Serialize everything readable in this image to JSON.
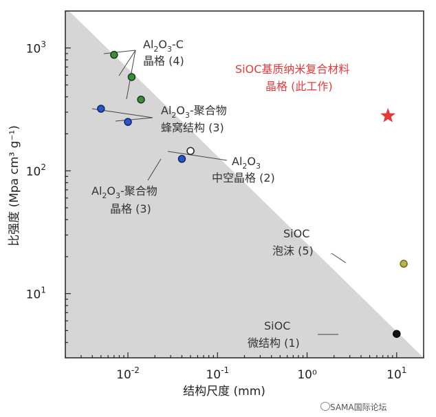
{
  "chart_data": {
    "type": "scatter",
    "xlabel": "结构尺度 (mm)",
    "ylabel": "比强度 (Mpa cm³ g⁻¹)",
    "x_scale": "log",
    "y_scale": "log",
    "xlim": [
      0.002,
      20
    ],
    "ylim": [
      3,
      2000
    ],
    "x_ticks": [
      {
        "value": 0.01,
        "base": "10",
        "exp": "-2"
      },
      {
        "value": 0.1,
        "base": "10",
        "exp": "-1"
      },
      {
        "value": 1,
        "text": "10⁰",
        "label": "10⁰"
      },
      {
        "value": 10,
        "base": "10",
        "exp": "1"
      }
    ],
    "y_ticks": [
      {
        "value": 10,
        "base": "10",
        "exp": "1"
      },
      {
        "value": 100,
        "base": "10",
        "exp": "2"
      },
      {
        "value": 1000,
        "base": "10",
        "exp": "3"
      }
    ],
    "shaded_region": {
      "description_free": true,
      "color": "#d6d6d6",
      "boundary": [
        [
          0.0022,
          2000
        ],
        [
          20,
          3
        ]
      ]
    },
    "series": [
      {
        "group": "al2o3-c",
        "color": "#3c8a3a",
        "edge": "#1d3d1b",
        "points": [
          [
            0.007,
            880
          ],
          [
            0.011,
            580
          ],
          [
            0.014,
            380
          ]
        ]
      },
      {
        "group": "al2o3-polymer-honeycomb",
        "color": "#2a55c8",
        "edge": "#122566",
        "points": [
          [
            0.005,
            320
          ],
          [
            0.01,
            250
          ]
        ]
      },
      {
        "group": "al2o3-polymer-lattice",
        "color": "#2a55c8",
        "edge": "#122566",
        "points": [
          [
            0.04,
            125
          ]
        ]
      },
      {
        "group": "al2o3-hollow",
        "color": "#ffffff",
        "edge": "#222222",
        "points": [
          [
            0.05,
            145
          ]
        ]
      },
      {
        "group": "sioc-foam",
        "color": "#b8b44a",
        "edge": "#6e6b20",
        "points": [
          [
            12,
            17.5
          ]
        ]
      },
      {
        "group": "sioc-micro",
        "color": "#111111",
        "edge": "#000000",
        "points": [
          [
            10,
            4.7
          ]
        ]
      },
      {
        "group": "sioc-nano",
        "color": "#e5393b",
        "edge": "#e5393b",
        "marker": "star",
        "points": [
          [
            8,
            280
          ]
        ]
      }
    ],
    "annotations": [
      {
        "key": "al2o3_c",
        "lines": [
          "Al2O3-C",
          "晶格 (4)"
        ]
      },
      {
        "key": "al2o3_poly_honey",
        "lines": [
          "Al2O3-聚合物",
          "蜂窝结构 (3)"
        ]
      },
      {
        "key": "al2o3_hollow",
        "lines": [
          "Al2O3",
          "中空晶格 (2)"
        ]
      },
      {
        "key": "al2o3_poly_lattice",
        "lines": [
          "Al2O3-聚合物",
          "晶格 (3)"
        ]
      },
      {
        "key": "sioc_nano",
        "lines": [
          "SiOC基质纳米复合材料",
          "晶格 (此工作)"
        ]
      },
      {
        "key": "sioc_foam",
        "lines": [
          "SiOC",
          "泡沫 (5)"
        ]
      },
      {
        "key": "sioc_micro",
        "lines": [
          "SiOC",
          "微结构 (1)"
        ]
      }
    ]
  },
  "labels": {
    "al2o3_c_a": "Al",
    "al2o3_c_b": "2",
    "al2o3_c_c": "O",
    "al2o3_c_d": "3",
    "al2o3_c_e": "-C",
    "al2o3_c_l2": "晶格 (4)",
    "honey_a": "Al",
    "honey_b": "2",
    "honey_c": "O",
    "honey_d": "3",
    "honey_e": "-聚合物",
    "honey_l2": "蜂窝结构 (3)",
    "hollow_a": "Al",
    "hollow_b": "2",
    "hollow_c": "O",
    "hollow_d": "3",
    "hollow_l2": "中空晶格 (2)",
    "plat_a": "Al",
    "plat_b": "2",
    "plat_c": "O",
    "plat_d": "3",
    "plat_e": "-聚合物",
    "plat_l2": "晶格 (3)",
    "nano_l1": "SiOC基质纳米复合材料",
    "nano_l2": "晶格 (此工作)",
    "foam_l1": "SiOC",
    "foam_l2": "泡沫 (5)",
    "micro_l1": "SiOC",
    "micro_l2": "微结构 (1)"
  },
  "watermark": "SAMA国际论坛"
}
